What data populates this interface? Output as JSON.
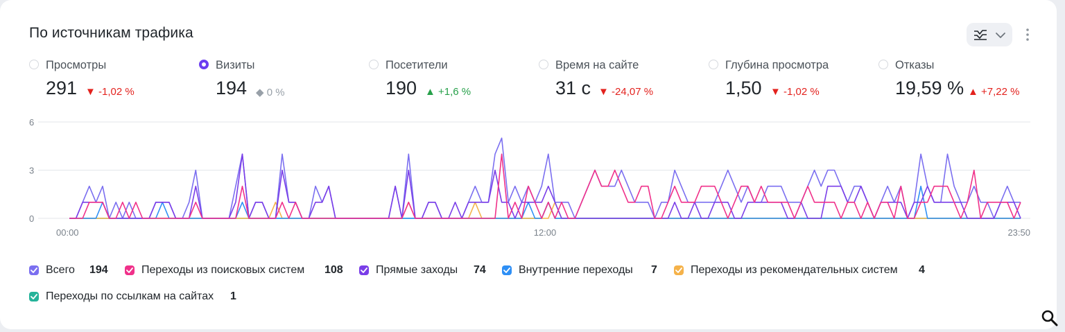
{
  "widget": {
    "title": "По источникам трафика"
  },
  "metrics": [
    {
      "label": "Просмотры",
      "value": "291",
      "delta": "▼ -1,02 %",
      "trend": "down",
      "selected": false
    },
    {
      "label": "Визиты",
      "value": "194",
      "delta": "◆ 0 %",
      "trend": "flat",
      "selected": true
    },
    {
      "label": "Посетители",
      "value": "190",
      "delta": "▲ +1,6 %",
      "trend": "up",
      "selected": false
    },
    {
      "label": "Время на сайте",
      "value": "31 с",
      "delta": "▼ -24,07 %",
      "trend": "down",
      "selected": false
    },
    {
      "label": "Глубина просмотра",
      "value": "1,50",
      "delta": "▼ -1,02 %",
      "trend": "down",
      "selected": false
    },
    {
      "label": "Отказы",
      "value": "19,59 %",
      "delta": "▲ +7,22 %",
      "trend": "up-bad",
      "selected": false
    }
  ],
  "colors": {
    "accent": "#6b3df0",
    "down": "#e3221e",
    "up": "#27a04a",
    "flat": "#98a0a8"
  },
  "legend": [
    {
      "name": "Всего",
      "count": "194",
      "color": "#7b6ff0"
    },
    {
      "name": "Переходы из поисковых систем",
      "count": "108",
      "color": "#f0318a"
    },
    {
      "name": "Прямые заходы",
      "count": "74",
      "color": "#7a3ee8"
    },
    {
      "name": "Внутренние переходы",
      "count": "7",
      "color": "#2e8ff5"
    },
    {
      "name": "Переходы из рекомендательных систем",
      "count": "4",
      "color": "#f5b24a"
    },
    {
      "name": "Переходы по ссылкам на сайтах",
      "count": "1",
      "color": "#25b39a"
    }
  ],
  "icons": {
    "mode": "chart-mode-icon",
    "chevron": "chevron-down-icon",
    "more": "more-vertical-icon",
    "search": "search-icon"
  },
  "chart_data": {
    "type": "line",
    "x_tick_labels": [
      "00:00",
      "12:00",
      "23:50"
    ],
    "y_ticks": [
      0,
      3,
      6
    ],
    "ylim": [
      0,
      6
    ],
    "x_points": 144,
    "grid": true,
    "series": [
      {
        "name": "Всего",
        "color": "#7b6ff0",
        "values": [
          0,
          0,
          1,
          2,
          1,
          2,
          0,
          1,
          0,
          1,
          0,
          0,
          0,
          1,
          1,
          1,
          0,
          0,
          1,
          3,
          0,
          0,
          0,
          0,
          0,
          2,
          4,
          0,
          1,
          1,
          0,
          0,
          4,
          1,
          1,
          0,
          0,
          2,
          1,
          2,
          0,
          0,
          0,
          0,
          0,
          0,
          0,
          0,
          0,
          2,
          0,
          4,
          0,
          0,
          1,
          1,
          0,
          0,
          0,
          0,
          1,
          2,
          1,
          1,
          4,
          5,
          1,
          2,
          1,
          2,
          1,
          2,
          4,
          1,
          1,
          1,
          0,
          1,
          2,
          3,
          2,
          2,
          2,
          3,
          2,
          1,
          1,
          1,
          0,
          1,
          1,
          3,
          2,
          1,
          1,
          1,
          1,
          1,
          2,
          3,
          2,
          1,
          2,
          1,
          1,
          2,
          2,
          2,
          1,
          1,
          1,
          2,
          3,
          2,
          3,
          3,
          2,
          1,
          2,
          2,
          1,
          0,
          1,
          2,
          1,
          2,
          0,
          1,
          4,
          2,
          1,
          1,
          4,
          2,
          1,
          1,
          2,
          1,
          1,
          0,
          1,
          2,
          1,
          1
        ]
      },
      {
        "name": "Переходы из поисковых систем",
        "color": "#f0318a",
        "values": [
          0,
          0,
          0,
          1,
          1,
          1,
          0,
          0,
          1,
          0,
          1,
          0,
          0,
          0,
          0,
          0,
          0,
          0,
          0,
          1,
          0,
          0,
          0,
          0,
          0,
          0,
          2,
          0,
          0,
          0,
          0,
          0,
          1,
          0,
          1,
          0,
          0,
          0,
          0,
          0,
          0,
          0,
          0,
          0,
          0,
          0,
          0,
          0,
          0,
          0,
          0,
          1,
          0,
          0,
          0,
          0,
          0,
          0,
          0,
          0,
          0,
          0,
          0,
          0,
          0,
          4,
          0,
          1,
          0,
          2,
          1,
          0,
          1,
          0,
          1,
          0,
          0,
          1,
          2,
          3,
          2,
          2,
          3,
          2,
          1,
          1,
          2,
          2,
          0,
          0,
          1,
          2,
          1,
          1,
          1,
          2,
          2,
          2,
          1,
          0,
          1,
          2,
          2,
          1,
          2,
          1,
          1,
          1,
          1,
          0,
          1,
          2,
          1,
          1,
          1,
          1,
          0,
          1,
          1,
          0,
          1,
          0,
          1,
          1,
          0,
          2,
          0,
          0,
          1,
          1,
          2,
          2,
          2,
          1,
          0,
          1,
          3,
          0,
          1,
          1,
          1,
          1,
          0,
          1
        ]
      },
      {
        "name": "Прямые заходы",
        "color": "#7a3ee8",
        "values": [
          0,
          0,
          1,
          1,
          1,
          1,
          0,
          0,
          0,
          0,
          0,
          0,
          0,
          1,
          1,
          1,
          0,
          0,
          0,
          2,
          0,
          0,
          0,
          0,
          0,
          1,
          4,
          0,
          1,
          1,
          0,
          0,
          3,
          1,
          1,
          0,
          0,
          1,
          1,
          2,
          0,
          0,
          0,
          0,
          0,
          0,
          0,
          0,
          0,
          2,
          0,
          3,
          0,
          0,
          1,
          1,
          0,
          0,
          1,
          0,
          1,
          1,
          1,
          1,
          3,
          1,
          1,
          0,
          1,
          1,
          1,
          1,
          2,
          1,
          0,
          0,
          0,
          0,
          0,
          0,
          0,
          0,
          0,
          0,
          0,
          0,
          0,
          0,
          0,
          0,
          0,
          1,
          0,
          0,
          1,
          0,
          0,
          1,
          1,
          1,
          0,
          0,
          1,
          1,
          1,
          1,
          1,
          1,
          0,
          0,
          1,
          0,
          0,
          0,
          2,
          2,
          2,
          1,
          1,
          2,
          1,
          0,
          1,
          1,
          1,
          1,
          0,
          1,
          1,
          2,
          1,
          1,
          1,
          1,
          1,
          0,
          0,
          0,
          0,
          0,
          1,
          1,
          1,
          0
        ]
      },
      {
        "name": "Внутренние переходы",
        "color": "#2e8ff5",
        "values": [
          0,
          0,
          0,
          0,
          0,
          1,
          0,
          0,
          0,
          0,
          0,
          0,
          0,
          0,
          1,
          0,
          0,
          0,
          0,
          0,
          0,
          0,
          0,
          0,
          0,
          0,
          1,
          0,
          0,
          0,
          0,
          0,
          0,
          0,
          0,
          0,
          0,
          0,
          0,
          0,
          0,
          0,
          0,
          0,
          0,
          0,
          0,
          0,
          0,
          0,
          0,
          0,
          0,
          0,
          0,
          0,
          0,
          0,
          0,
          0,
          0,
          0,
          0,
          0,
          0,
          0,
          0,
          0,
          0,
          1,
          0,
          0,
          1,
          0,
          0,
          0,
          0,
          0,
          0,
          0,
          0,
          0,
          0,
          0,
          0,
          0,
          0,
          0,
          0,
          0,
          0,
          0,
          0,
          0,
          0,
          0,
          0,
          0,
          0,
          0,
          0,
          0,
          0,
          0,
          0,
          0,
          0,
          0,
          0,
          0,
          0,
          0,
          0,
          0,
          0,
          0,
          0,
          0,
          0,
          0,
          0,
          0,
          0,
          0,
          0,
          0,
          0,
          0,
          2,
          0,
          0,
          0,
          0,
          0,
          0,
          0,
          0,
          0,
          0,
          0,
          0,
          0,
          0,
          0
        ]
      },
      {
        "name": "Переходы из рекомендательных систем",
        "color": "#f5b24a",
        "values": [
          0,
          0,
          0,
          0,
          0,
          0,
          0,
          0,
          0,
          0,
          0,
          0,
          0,
          0,
          0,
          0,
          0,
          0,
          0,
          0,
          0,
          0,
          0,
          0,
          0,
          0,
          0,
          0,
          0,
          0,
          0,
          1,
          0,
          0,
          0,
          0,
          0,
          0,
          0,
          0,
          0,
          0,
          0,
          0,
          0,
          0,
          0,
          0,
          0,
          0,
          0,
          1,
          0,
          0,
          0,
          0,
          0,
          0,
          0,
          0,
          0,
          1,
          0,
          0,
          0,
          0,
          0,
          0,
          0,
          0,
          0,
          0,
          0,
          1,
          0,
          0,
          0,
          0,
          0,
          0,
          0,
          0,
          0,
          0,
          0,
          0,
          0,
          0,
          0,
          0,
          0,
          0,
          0,
          0,
          0,
          0,
          0,
          0,
          0,
          0,
          0,
          0,
          0,
          0,
          0,
          0,
          0,
          0,
          0,
          0,
          0,
          0,
          0,
          0,
          0,
          0,
          0,
          0,
          0,
          0,
          0,
          0,
          0,
          0,
          0,
          0,
          0,
          0,
          0,
          0,
          0,
          0,
          0,
          0,
          0,
          0,
          0,
          0,
          0,
          0,
          0,
          0,
          0,
          0
        ]
      },
      {
        "name": "Переходы по ссылкам на сайтах",
        "color": "#25b39a",
        "values": [
          0,
          0,
          0,
          0,
          0,
          0,
          0,
          0,
          0,
          0,
          0,
          0,
          0,
          0,
          0,
          0,
          0,
          0,
          0,
          0,
          0,
          0,
          0,
          0,
          0,
          0,
          0,
          0,
          0,
          0,
          0,
          0,
          0,
          0,
          0,
          0,
          0,
          0,
          0,
          0,
          0,
          0,
          0,
          0,
          0,
          0,
          0,
          0,
          0,
          0,
          0,
          0,
          0,
          0,
          0,
          0,
          0,
          0,
          0,
          0,
          0,
          0,
          0,
          0,
          0,
          0,
          0,
          0,
          0,
          0,
          0,
          0,
          1,
          0,
          0,
          0,
          0,
          0,
          0,
          0,
          0,
          0,
          0,
          0,
          0,
          0,
          0,
          0,
          0,
          0,
          0,
          0,
          0,
          0,
          0,
          0,
          0,
          0,
          0,
          0,
          0,
          0,
          0,
          0,
          0,
          0,
          0,
          0,
          0,
          0,
          0,
          0,
          0,
          0,
          0,
          0,
          0,
          0,
          0,
          0,
          0,
          0,
          0,
          0,
          0,
          0,
          0,
          0,
          0,
          0,
          0,
          0,
          0,
          0,
          0,
          0,
          0,
          0,
          0,
          0,
          0,
          0,
          0,
          0
        ]
      }
    ]
  }
}
